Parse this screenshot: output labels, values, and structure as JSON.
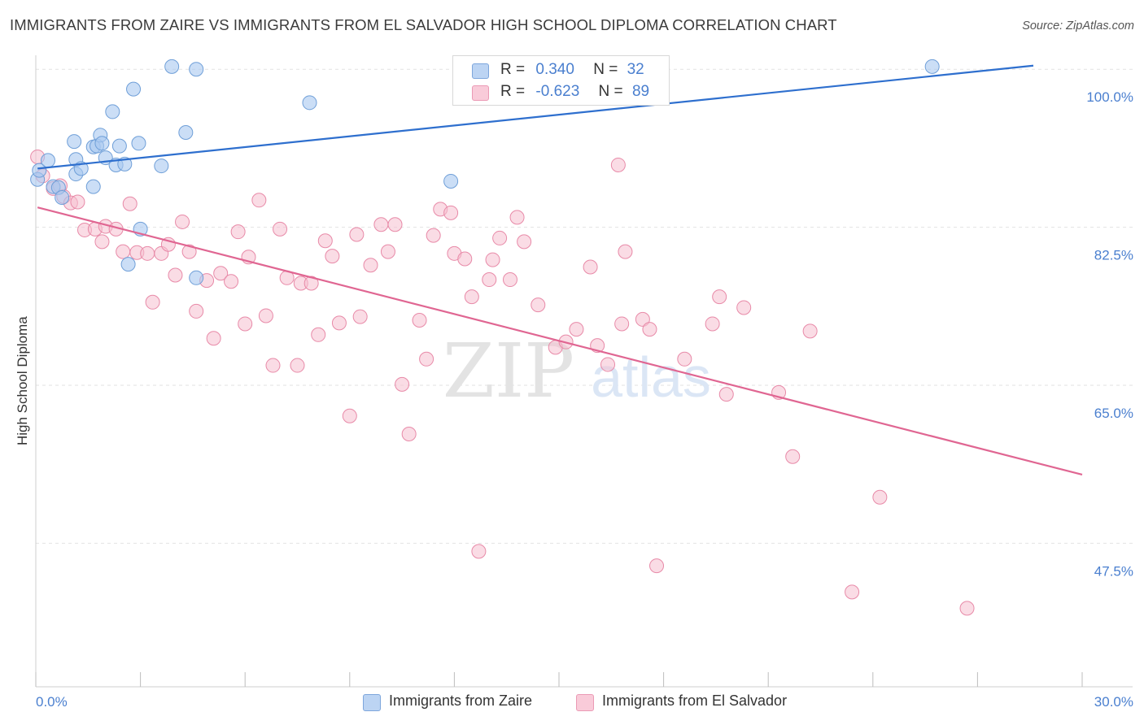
{
  "title": "IMMIGRANTS FROM ZAIRE VS IMMIGRANTS FROM EL SALVADOR HIGH SCHOOL DIPLOMA CORRELATION CHART",
  "source": "Source: ZipAtlas.com",
  "watermark": {
    "zip": "ZIP",
    "atlas": "atlas"
  },
  "legend": {
    "zaire": {
      "r_label": "R =",
      "r_value": "0.340",
      "n_label": "N =",
      "n_value": "32"
    },
    "elsalvador": {
      "r_label": "R =",
      "r_value": "-0.623",
      "n_label": "N =",
      "n_value": "89"
    }
  },
  "bottom_legend": {
    "zaire": "Immigrants from Zaire",
    "elsalvador": "Immigrants from El Salvador"
  },
  "colors": {
    "zaire_fill": "#a8c8f0",
    "zaire_stroke": "#6f9fd8",
    "zaire_line": "#2e6fce",
    "elsalvador_fill": "#f6bfd0",
    "elsalvador_stroke": "#e88aa8",
    "elsalvador_line": "#e06692",
    "tick_label": "#4a7fcf"
  },
  "chart_data": {
    "type": "scatter",
    "title": "IMMIGRANTS FROM ZAIRE VS IMMIGRANTS FROM EL SALVADOR HIGH SCHOOL DIPLOMA CORRELATION CHART",
    "xlabel": "",
    "ylabel": "High School Diploma",
    "xlim": [
      0,
      30
    ],
    "ylim": [
      31.6,
      102.0
    ],
    "x_tick_labels": [
      {
        "value": 0,
        "label": "0.0%"
      },
      {
        "value": 30,
        "label": "30.0%"
      }
    ],
    "y_tick_labels": [
      {
        "value": 100.0,
        "label": "100.0%"
      },
      {
        "value": 82.5,
        "label": "82.5%"
      },
      {
        "value": 65.0,
        "label": "65.0%"
      },
      {
        "value": 47.5,
        "label": "47.5%"
      }
    ],
    "series": [
      {
        "name": "Immigrants from Zaire",
        "R": 0.34,
        "N": 32,
        "trend": {
          "x": [
            0.05,
            28.6
          ],
          "y": [
            89.0,
            100.4
          ]
        },
        "points": [
          [
            0.05,
            87.8
          ],
          [
            0.1,
            88.8
          ],
          [
            0.35,
            89.9
          ],
          [
            0.5,
            87.0
          ],
          [
            0.65,
            86.9
          ],
          [
            0.75,
            85.8
          ],
          [
            1.1,
            92.0
          ],
          [
            1.15,
            88.4
          ],
          [
            1.15,
            90.0
          ],
          [
            1.3,
            89.0
          ],
          [
            1.65,
            91.4
          ],
          [
            1.75,
            91.5
          ],
          [
            1.65,
            87.0
          ],
          [
            1.85,
            92.7
          ],
          [
            1.9,
            91.8
          ],
          [
            2.0,
            90.2
          ],
          [
            2.2,
            95.3
          ],
          [
            2.3,
            89.4
          ],
          [
            2.4,
            91.5
          ],
          [
            2.55,
            89.5
          ],
          [
            2.8,
            97.8
          ],
          [
            2.95,
            91.8
          ],
          [
            3.0,
            82.3
          ],
          [
            2.65,
            78.4
          ],
          [
            3.6,
            89.3
          ],
          [
            3.9,
            100.3
          ],
          [
            4.3,
            93.0
          ],
          [
            4.6,
            76.9
          ],
          [
            4.6,
            100.0
          ],
          [
            7.85,
            96.3
          ],
          [
            11.9,
            87.6
          ],
          [
            25.7,
            100.3
          ]
        ]
      },
      {
        "name": "Immigrants from El Salvador",
        "R": -0.623,
        "N": 89,
        "trend": {
          "x": [
            0.05,
            30.0
          ],
          "y": [
            84.7,
            55.1
          ]
        },
        "points": [
          [
            0.05,
            90.3
          ],
          [
            0.2,
            88.2
          ],
          [
            0.5,
            86.8
          ],
          [
            0.7,
            87.1
          ],
          [
            0.8,
            85.9
          ],
          [
            1.0,
            85.2
          ],
          [
            1.2,
            85.3
          ],
          [
            1.4,
            82.2
          ],
          [
            1.7,
            82.3
          ],
          [
            1.9,
            80.9
          ],
          [
            2.0,
            82.6
          ],
          [
            2.3,
            82.3
          ],
          [
            2.5,
            79.8
          ],
          [
            2.7,
            85.1
          ],
          [
            2.9,
            79.7
          ],
          [
            3.2,
            79.6
          ],
          [
            3.35,
            74.2
          ],
          [
            3.6,
            79.6
          ],
          [
            3.8,
            80.6
          ],
          [
            4.0,
            77.2
          ],
          [
            4.2,
            83.1
          ],
          [
            4.4,
            79.8
          ],
          [
            4.6,
            73.2
          ],
          [
            4.9,
            76.6
          ],
          [
            5.1,
            70.2
          ],
          [
            5.3,
            77.4
          ],
          [
            5.6,
            76.5
          ],
          [
            5.8,
            82.0
          ],
          [
            6.0,
            71.8
          ],
          [
            6.1,
            79.2
          ],
          [
            6.4,
            85.5
          ],
          [
            6.6,
            72.7
          ],
          [
            6.8,
            67.2
          ],
          [
            7.0,
            82.3
          ],
          [
            7.2,
            76.9
          ],
          [
            7.5,
            67.2
          ],
          [
            7.6,
            76.3
          ],
          [
            7.9,
            76.3
          ],
          [
            8.1,
            70.6
          ],
          [
            8.3,
            81.0
          ],
          [
            8.5,
            79.3
          ],
          [
            8.7,
            71.9
          ],
          [
            9.0,
            61.6
          ],
          [
            9.2,
            81.7
          ],
          [
            9.3,
            72.6
          ],
          [
            9.6,
            78.3
          ],
          [
            9.9,
            82.8
          ],
          [
            10.1,
            79.8
          ],
          [
            10.3,
            82.8
          ],
          [
            10.5,
            65.1
          ],
          [
            10.7,
            59.6
          ],
          [
            11.0,
            72.2
          ],
          [
            11.2,
            67.9
          ],
          [
            11.4,
            81.6
          ],
          [
            11.6,
            84.5
          ],
          [
            11.9,
            84.1
          ],
          [
            12.0,
            79.6
          ],
          [
            12.3,
            79.0
          ],
          [
            12.5,
            74.8
          ],
          [
            12.7,
            46.6
          ],
          [
            13.0,
            76.7
          ],
          [
            13.1,
            78.9
          ],
          [
            13.3,
            81.3
          ],
          [
            13.6,
            76.7
          ],
          [
            13.8,
            83.6
          ],
          [
            14.0,
            80.9
          ],
          [
            14.4,
            73.9
          ],
          [
            14.9,
            69.2
          ],
          [
            15.2,
            69.8
          ],
          [
            15.5,
            71.2
          ],
          [
            15.9,
            78.1
          ],
          [
            16.1,
            69.4
          ],
          [
            16.4,
            67.3
          ],
          [
            16.7,
            89.4
          ],
          [
            16.8,
            71.8
          ],
          [
            16.9,
            79.8
          ],
          [
            17.4,
            72.3
          ],
          [
            17.6,
            71.2
          ],
          [
            17.8,
            45.0
          ],
          [
            18.6,
            67.9
          ],
          [
            19.4,
            71.8
          ],
          [
            19.6,
            74.8
          ],
          [
            19.8,
            64.0
          ],
          [
            20.3,
            73.6
          ],
          [
            21.3,
            64.2
          ],
          [
            21.7,
            57.1
          ],
          [
            22.2,
            71.0
          ],
          [
            23.4,
            42.1
          ],
          [
            24.2,
            52.6
          ],
          [
            26.7,
            40.3
          ]
        ]
      }
    ]
  }
}
